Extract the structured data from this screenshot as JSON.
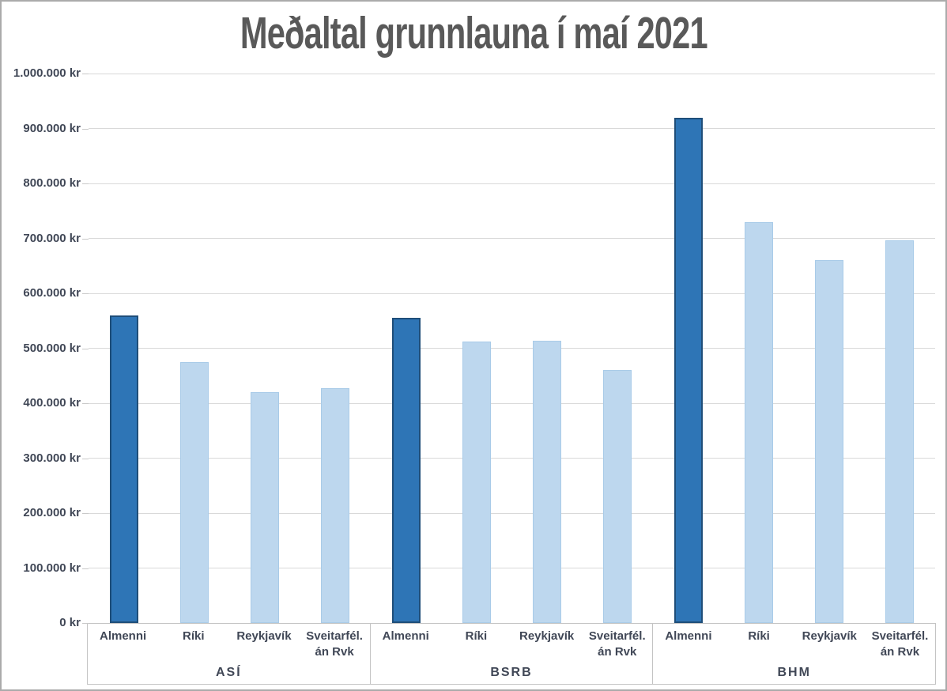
{
  "title": "Meðaltal grunnlauna í maí 2021",
  "colors": {
    "bar_dark_fill": "#2E75B6",
    "bar_dark_border": "#1F4E79",
    "bar_light_fill": "#BDD7EE",
    "bar_light_border": "#A9CBE8",
    "gridline": "#D9D9D9",
    "axis_box_border": "#C4C4C4",
    "axis_text": "#404756",
    "title_text": "#595959",
    "frame_border": "#ABABAB"
  },
  "y_axis": {
    "unit": "kr",
    "min": 0,
    "max": 1000000,
    "step": 100000,
    "ticks": [
      {
        "value": 1000000,
        "label": "1.000.000 kr"
      },
      {
        "value": 900000,
        "label": "900.000 kr"
      },
      {
        "value": 800000,
        "label": "800.000 kr"
      },
      {
        "value": 700000,
        "label": "700.000 kr"
      },
      {
        "value": 600000,
        "label": "600.000 kr"
      },
      {
        "value": 500000,
        "label": "500.000 kr"
      },
      {
        "value": 400000,
        "label": "400.000 kr"
      },
      {
        "value": 300000,
        "label": "300.000 kr"
      },
      {
        "value": 200000,
        "label": "200.000 kr"
      },
      {
        "value": 100000,
        "label": "100.000 kr"
      },
      {
        "value": 0,
        "label": "0 kr"
      }
    ]
  },
  "chart_data": {
    "type": "bar",
    "title": "Meðaltal grunnlauna í maí 2021",
    "xlabel": "",
    "ylabel": "",
    "ylim": [
      0,
      1000000
    ],
    "grid": true,
    "legend": false,
    "categories": [
      "Almenni",
      "Ríki",
      "Reykjavík",
      "Sveitarfél. án Rvk"
    ],
    "groups": [
      {
        "name": "ASÍ",
        "values": [
          560000,
          475000,
          420000,
          427000
        ]
      },
      {
        "name": "BSRB",
        "values": [
          556000,
          512000,
          514000,
          460000
        ]
      },
      {
        "name": "BHM",
        "values": [
          919000,
          730000,
          660000,
          697000
        ]
      }
    ],
    "highlight_category": "Almenni"
  }
}
